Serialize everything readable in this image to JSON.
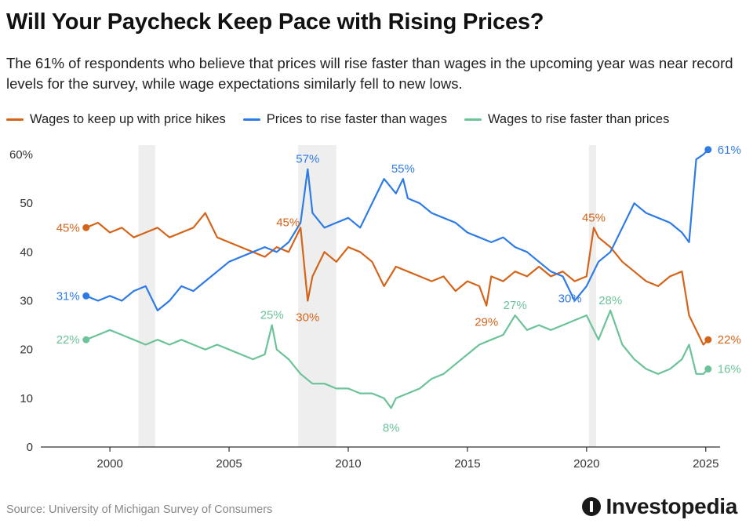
{
  "header": {
    "title": "Will Your Paycheck Keep Pace with Rising Prices?",
    "subtitle": "The 61% of respondents who believe that prices will rise faster than wages in the upcoming year was near record levels for the survey, while wage expectations similarly fell to new lows."
  },
  "footer": {
    "source": "Source: University of Michigan Survey of Consumers",
    "brand": "Investopedia"
  },
  "colors": {
    "orange": "#D4641A",
    "blue": "#2E7BE6",
    "green": "#6CC39A",
    "recession": "#EEEEEE",
    "axis": "#333333"
  },
  "chart_data": {
    "type": "line",
    "title": "Will Your Paycheck Keep Pace with Rising Prices?",
    "xlabel": "",
    "ylabel": "",
    "xlim": [
      1997.1,
      2025.6
    ],
    "ylim": [
      0,
      60
    ],
    "x_ticks": [
      2000,
      2005,
      2010,
      2015,
      2020,
      2025
    ],
    "x_tick_labels": [
      "2000",
      "2005",
      "2010",
      "2015",
      "2020",
      "2025"
    ],
    "y_ticks": [
      0,
      10,
      20,
      30,
      40,
      50,
      60
    ],
    "y_tick_labels": [
      "0",
      "10",
      "20",
      "30",
      "40",
      "50",
      "60%"
    ],
    "recessions": [
      [
        2001.2,
        2001.9
      ],
      [
        2007.9,
        2009.5
      ],
      [
        2020.1,
        2020.4
      ]
    ],
    "series": [
      {
        "name": "Wages to keep up with price hikes",
        "color": "#D4641A",
        "x": [
          1999.0,
          1999.5,
          2000.0,
          2000.5,
          2001.0,
          2001.5,
          2002.0,
          2002.5,
          2003.0,
          2003.5,
          2004.0,
          2004.5,
          2005.0,
          2005.5,
          2006.0,
          2006.5,
          2007.0,
          2007.5,
          2008.0,
          2008.3,
          2008.5,
          2009.0,
          2009.5,
          2010.0,
          2010.5,
          2011.0,
          2011.5,
          2012.0,
          2012.5,
          2013.0,
          2013.5,
          2014.0,
          2014.5,
          2015.0,
          2015.5,
          2015.8,
          2016.0,
          2016.5,
          2017.0,
          2017.5,
          2018.0,
          2018.5,
          2019.0,
          2019.5,
          2020.0,
          2020.3,
          2020.5,
          2021.0,
          2021.5,
          2022.0,
          2022.5,
          2023.0,
          2023.5,
          2024.0,
          2024.3,
          2024.6,
          2024.9,
          2025.1
        ],
        "values": [
          45,
          46,
          44,
          45,
          43,
          44,
          45,
          43,
          44,
          45,
          48,
          43,
          42,
          41,
          40,
          39,
          41,
          40,
          45,
          30,
          35,
          40,
          38,
          41,
          40,
          38,
          33,
          37,
          36,
          35,
          34,
          35,
          32,
          34,
          33,
          29,
          35,
          34,
          36,
          35,
          37,
          35,
          36,
          34,
          35,
          45,
          43,
          41,
          38,
          36,
          34,
          33,
          35,
          36,
          27,
          24,
          21,
          22
        ]
      },
      {
        "name": "Prices to rise faster than wages",
        "color": "#2E7BE6",
        "x": [
          1999.0,
          1999.5,
          2000.0,
          2000.5,
          2001.0,
          2001.5,
          2002.0,
          2002.5,
          2003.0,
          2003.5,
          2004.0,
          2004.5,
          2005.0,
          2005.5,
          2006.0,
          2006.5,
          2007.0,
          2007.5,
          2008.0,
          2008.3,
          2008.5,
          2009.0,
          2009.5,
          2010.0,
          2010.5,
          2011.0,
          2011.5,
          2012.0,
          2012.3,
          2012.5,
          2013.0,
          2013.5,
          2014.0,
          2014.5,
          2015.0,
          2015.5,
          2016.0,
          2016.5,
          2017.0,
          2017.5,
          2018.0,
          2018.5,
          2019.0,
          2019.5,
          2020.0,
          2020.5,
          2021.0,
          2021.5,
          2022.0,
          2022.5,
          2023.0,
          2023.5,
          2024.0,
          2024.3,
          2024.6,
          2024.9,
          2025.1
        ],
        "values": [
          31,
          30,
          31,
          30,
          32,
          33,
          28,
          30,
          33,
          32,
          34,
          36,
          38,
          39,
          40,
          41,
          40,
          42,
          46,
          57,
          48,
          45,
          46,
          47,
          45,
          50,
          55,
          52,
          55,
          51,
          50,
          48,
          47,
          46,
          44,
          43,
          42,
          43,
          41,
          40,
          38,
          36,
          35,
          30,
          33,
          38,
          40,
          45,
          50,
          48,
          47,
          46,
          44,
          42,
          59,
          60,
          61
        ]
      },
      {
        "name": "Wages to rise faster than prices",
        "color": "#6CC39A",
        "x": [
          1999.0,
          1999.5,
          2000.0,
          2000.5,
          2001.0,
          2001.5,
          2002.0,
          2002.5,
          2003.0,
          2003.5,
          2004.0,
          2004.5,
          2005.0,
          2005.5,
          2006.0,
          2006.5,
          2006.8,
          2007.0,
          2007.5,
          2008.0,
          2008.5,
          2009.0,
          2009.5,
          2010.0,
          2010.5,
          2011.0,
          2011.5,
          2011.8,
          2012.0,
          2012.5,
          2013.0,
          2013.5,
          2014.0,
          2014.5,
          2015.0,
          2015.5,
          2016.0,
          2016.5,
          2017.0,
          2017.5,
          2018.0,
          2018.5,
          2019.0,
          2019.5,
          2020.0,
          2020.5,
          2021.0,
          2021.5,
          2022.0,
          2022.5,
          2023.0,
          2023.5,
          2024.0,
          2024.3,
          2024.6,
          2024.9,
          2025.1
        ],
        "values": [
          22,
          23,
          24,
          23,
          22,
          21,
          22,
          21,
          22,
          21,
          20,
          21,
          20,
          19,
          18,
          19,
          25,
          20,
          18,
          15,
          13,
          13,
          12,
          12,
          11,
          11,
          10,
          8,
          10,
          11,
          12,
          14,
          15,
          17,
          19,
          21,
          22,
          23,
          27,
          24,
          25,
          24,
          25,
          26,
          27,
          22,
          28,
          21,
          18,
          16,
          15,
          16,
          18,
          21,
          15,
          15,
          16
        ]
      }
    ],
    "annotations": [
      {
        "series": 0,
        "x": 1999.0,
        "y": 45,
        "text": "45%"
      },
      {
        "series": 0,
        "x": 2008.0,
        "y": 45,
        "text": "45%"
      },
      {
        "series": 0,
        "x": 2008.3,
        "y": 30,
        "text": "30%"
      },
      {
        "series": 0,
        "x": 2015.8,
        "y": 29,
        "text": "29%"
      },
      {
        "series": 0,
        "x": 2020.3,
        "y": 45,
        "text": "45%"
      },
      {
        "series": 0,
        "x": 2025.1,
        "y": 22,
        "text": "22%"
      },
      {
        "series": 1,
        "x": 1999.0,
        "y": 31,
        "text": "31%"
      },
      {
        "series": 1,
        "x": 2008.3,
        "y": 57,
        "text": "57%"
      },
      {
        "series": 1,
        "x": 2012.3,
        "y": 55,
        "text": "55%"
      },
      {
        "series": 1,
        "x": 2019.5,
        "y": 30,
        "text": "30%"
      },
      {
        "series": 1,
        "x": 2025.1,
        "y": 61,
        "text": "61%"
      },
      {
        "series": 2,
        "x": 1999.0,
        "y": 22,
        "text": "22%"
      },
      {
        "series": 2,
        "x": 2006.8,
        "y": 25,
        "text": "25%"
      },
      {
        "series": 2,
        "x": 2011.8,
        "y": 8,
        "text": "8%"
      },
      {
        "series": 2,
        "x": 2017.0,
        "y": 27,
        "text": "27%"
      },
      {
        "series": 2,
        "x": 2021.0,
        "y": 28,
        "text": "28%"
      },
      {
        "series": 2,
        "x": 2025.1,
        "y": 16,
        "text": "16%"
      }
    ]
  }
}
